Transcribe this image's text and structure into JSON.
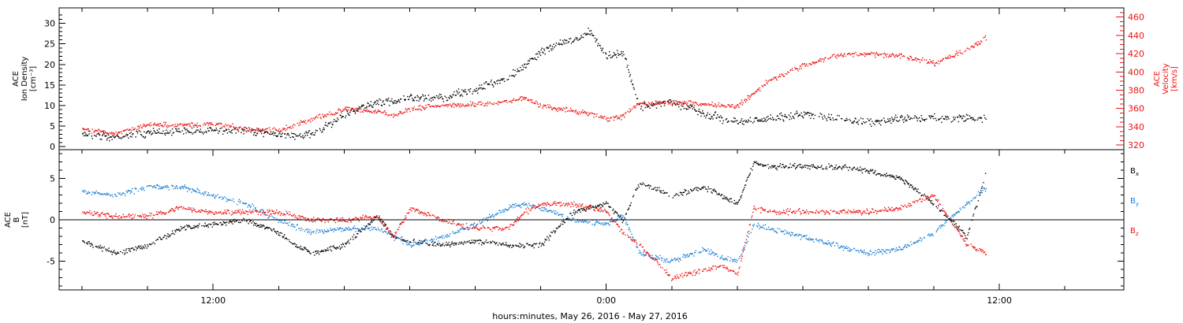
{
  "chart_data": [
    {
      "type": "scatter",
      "panel": "top",
      "ylabel_left": [
        "ACE",
        "Ion Density",
        "[cm⁻³]"
      ],
      "ylabel_right": [
        "ACE",
        "Velocity",
        "[km/s]"
      ],
      "ylim_left": [
        0,
        33
      ],
      "ylim_right": [
        315,
        470
      ],
      "yticks_left": [
        "0",
        "5",
        "10",
        "15",
        "20",
        "25",
        "30"
      ],
      "yticks_right": [
        "320",
        "340",
        "360",
        "380",
        "400",
        "420",
        "440",
        "460"
      ],
      "grid": false,
      "series": [
        {
          "axis": "left",
          "color": "#000000",
          "x": [
            8.0,
            9.0,
            10.0,
            11.0,
            12.0,
            13.0,
            14.0,
            15.0,
            16.0,
            17.0,
            17.5,
            18.0,
            19.0,
            20.0,
            21.0,
            21.5,
            22.0,
            22.5,
            23.0,
            23.5,
            24.0,
            24.5,
            25.0,
            26.0,
            27.0,
            28.0,
            29.0,
            30.0,
            31.0,
            32.0,
            33.0,
            34.0,
            35.0,
            35.6
          ],
          "values": [
            3,
            2.5,
            3.5,
            4,
            4,
            4,
            3,
            3,
            8,
            11,
            11,
            12,
            12,
            14,
            17,
            20,
            23,
            25,
            26,
            28,
            22,
            23,
            10,
            11,
            8,
            6,
            7,
            8,
            7,
            6,
            7,
            7,
            7,
            7
          ]
        },
        {
          "axis": "right",
          "color": "#ee1111",
          "x": [
            8.0,
            9.0,
            10.0,
            11.0,
            12.0,
            13.0,
            14.0,
            15.0,
            16.0,
            17.0,
            17.5,
            18.0,
            19.0,
            20.0,
            21.0,
            21.5,
            22.0,
            22.5,
            23.0,
            23.5,
            24.0,
            24.5,
            25.0,
            26.0,
            27.0,
            28.0,
            29.0,
            30.0,
            31.0,
            32.0,
            33.0,
            34.0,
            35.0,
            35.6
          ],
          "values": [
            338,
            333,
            343,
            342,
            344,
            338,
            336,
            349,
            360,
            357,
            353,
            360,
            364,
            365,
            368,
            372,
            363,
            360,
            358,
            355,
            350,
            352,
            366,
            367,
            365,
            363,
            392,
            407,
            418,
            420,
            418,
            410,
            425,
            438
          ]
        }
      ]
    },
    {
      "type": "scatter",
      "panel": "bottom",
      "ylabel": [
        "ACE",
        "B",
        "[nT]"
      ],
      "ylim": [
        -8.5,
        8.5
      ],
      "yticks": [
        "-5",
        "0",
        "5"
      ],
      "zero_line": true,
      "grid": false,
      "legend": "right",
      "series": [
        {
          "name": "Bx",
          "color": "#000000",
          "x": [
            8.0,
            9.0,
            10.0,
            11.0,
            12.0,
            13.0,
            14.0,
            14.5,
            15.0,
            16.0,
            17.0,
            17.5,
            18.0,
            19.0,
            20.0,
            21.0,
            22.0,
            23.0,
            24.0,
            24.5,
            25.0,
            26.0,
            27.0,
            27.5,
            28.0,
            28.5,
            29.0,
            30.0,
            31.0,
            32.0,
            33.0,
            34.0,
            35.0,
            35.6
          ],
          "values": [
            -2.5,
            -4,
            -3,
            -1,
            -0.5,
            0,
            -1.5,
            -3,
            -4,
            -3,
            0.5,
            -2,
            -2.5,
            -3,
            -2.5,
            -3,
            -3,
            1,
            2,
            0,
            4.5,
            3,
            4,
            3,
            2,
            7,
            6.5,
            6.5,
            6.5,
            6,
            5,
            2,
            -2,
            6
          ]
        },
        {
          "name": "By",
          "color": "#1a7fd6",
          "x": [
            8.0,
            9.0,
            10.0,
            11.0,
            12.0,
            13.0,
            14.0,
            15.0,
            16.0,
            17.0,
            17.5,
            18.0,
            19.0,
            20.0,
            21.0,
            21.5,
            22.0,
            23.0,
            24.0,
            24.5,
            25.0,
            26.0,
            27.0,
            27.5,
            28.0,
            28.5,
            29.0,
            30.0,
            31.0,
            32.0,
            33.0,
            34.0,
            35.0,
            35.6
          ],
          "values": [
            3.5,
            3,
            4,
            4,
            3,
            2,
            0,
            -1.5,
            -1,
            -1,
            -2,
            -3,
            -2,
            -0.5,
            1.5,
            2,
            1.5,
            0,
            -0.5,
            0.5,
            -4,
            -5,
            -3.5,
            -4.5,
            -5,
            -0.5,
            -1,
            -2,
            -3,
            -4,
            -3.5,
            -1.5,
            2,
            4
          ]
        },
        {
          "name": "Bz",
          "color": "#ee1111",
          "x": [
            8.0,
            9.0,
            10.0,
            11.0,
            12.0,
            13.0,
            14.0,
            15.0,
            16.0,
            17.0,
            17.5,
            18.0,
            19.0,
            20.0,
            21.0,
            21.5,
            22.0,
            23.0,
            24.0,
            24.5,
            25.0,
            26.0,
            27.0,
            27.5,
            28.0,
            28.5,
            29.0,
            30.0,
            31.0,
            32.0,
            33.0,
            34.0,
            35.0,
            35.6
          ],
          "values": [
            1,
            0.5,
            0.5,
            1.5,
            1,
            1,
            1,
            0,
            0,
            0.5,
            -2,
            1.5,
            0,
            -1,
            -1,
            1,
            2,
            2,
            1,
            -1.5,
            -3,
            -7,
            -6,
            -5.5,
            -6.5,
            1.5,
            1,
            1,
            1,
            1,
            1.5,
            3,
            -3,
            -4
          ]
        }
      ]
    }
  ],
  "xaxis": {
    "label": "hours:minutes, May 26, 2016 - May 27, 2016",
    "xlim": [
      7.3,
      39.8
    ],
    "ticks": [
      {
        "x": 12,
        "label": "12:00"
      },
      {
        "x": 24,
        "label": "0:00"
      },
      {
        "x": 36,
        "label": "12:00"
      }
    ]
  },
  "legend_labels": [
    {
      "series": "Bx",
      "letter": "B",
      "sub": "x",
      "color": "#000000"
    },
    {
      "series": "By",
      "letter": "B",
      "sub": "y",
      "color": "#1a7fd6"
    },
    {
      "series": "Bz",
      "letter": "B",
      "sub": "z",
      "color": "#ee1111"
    }
  ]
}
